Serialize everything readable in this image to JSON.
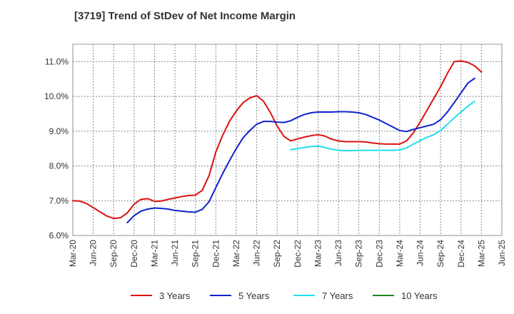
{
  "chart_data": {
    "type": "line",
    "title": "[3719]  Trend of StDev of Net Income Margin",
    "xlabel": "",
    "ylabel": "",
    "ylim": [
      6.0,
      11.5
    ],
    "y_ticks": [
      6.0,
      7.0,
      8.0,
      9.0,
      10.0,
      11.0
    ],
    "y_tick_labels": [
      "6.0%",
      "7.0%",
      "8.0%",
      "9.0%",
      "10.0%",
      "11.0%"
    ],
    "x_tick_labels": [
      "Mar-20",
      "Jun-20",
      "Sep-20",
      "Dec-20",
      "Mar-21",
      "Jun-21",
      "Sep-21",
      "Dec-21",
      "Mar-22",
      "Jun-22",
      "Sep-22",
      "Dec-22",
      "Mar-23",
      "Jun-23",
      "Sep-23",
      "Dec-23",
      "Mar-24",
      "Jun-24",
      "Sep-24",
      "Dec-24",
      "Mar-25",
      "Jun-25"
    ],
    "x_months": [
      "2020-03",
      "2020-04",
      "2020-05",
      "2020-06",
      "2020-07",
      "2020-08",
      "2020-09",
      "2020-10",
      "2020-11",
      "2020-12",
      "2021-01",
      "2021-02",
      "2021-03",
      "2021-04",
      "2021-05",
      "2021-06",
      "2021-07",
      "2021-08",
      "2021-09",
      "2021-10",
      "2021-11",
      "2021-12",
      "2022-01",
      "2022-02",
      "2022-03",
      "2022-04",
      "2022-05",
      "2022-06",
      "2022-07",
      "2022-08",
      "2022-09",
      "2022-10",
      "2022-11",
      "2022-12",
      "2023-01",
      "2023-02",
      "2023-03",
      "2023-04",
      "2023-05",
      "2023-06",
      "2023-07",
      "2023-08",
      "2023-09",
      "2023-10",
      "2023-11",
      "2023-12",
      "2024-01",
      "2024-02",
      "2024-03",
      "2024-04",
      "2024-05",
      "2024-06",
      "2024-07",
      "2024-08",
      "2024-09",
      "2024-10",
      "2024-11",
      "2024-12",
      "2025-01",
      "2025-02",
      "2025-03"
    ],
    "grid": true,
    "legend_position": "bottom",
    "series": [
      {
        "name": "3 Years",
        "color": "#dd1111",
        "values": [
          7.0,
          6.99,
          6.92,
          6.8,
          6.68,
          6.56,
          6.49,
          6.51,
          6.65,
          6.9,
          7.04,
          7.06,
          6.98,
          6.99,
          7.04,
          7.08,
          7.12,
          7.15,
          7.16,
          7.3,
          7.72,
          8.4,
          8.88,
          9.28,
          9.58,
          9.82,
          9.96,
          10.02,
          9.86,
          9.54,
          9.15,
          8.85,
          8.72,
          8.78,
          8.83,
          8.87,
          8.9,
          8.86,
          8.77,
          8.72,
          8.7,
          8.7,
          8.7,
          8.69,
          8.66,
          8.64,
          8.63,
          8.63,
          8.63,
          8.72,
          8.95,
          9.26,
          9.6,
          9.94,
          10.28,
          10.66,
          11.0,
          11.02,
          10.98,
          10.88,
          10.7
        ]
      },
      {
        "name": "5 Years",
        "color": "#1122cc",
        "values": [
          null,
          null,
          null,
          null,
          null,
          null,
          null,
          null,
          6.37,
          6.57,
          6.7,
          6.76,
          6.79,
          6.78,
          6.76,
          6.72,
          6.7,
          6.68,
          6.67,
          6.75,
          6.97,
          7.38,
          7.78,
          8.15,
          8.5,
          8.81,
          9.02,
          9.2,
          9.28,
          9.28,
          9.26,
          9.25,
          9.3,
          9.4,
          9.48,
          9.53,
          9.55,
          9.55,
          9.55,
          9.56,
          9.56,
          9.55,
          9.53,
          9.48,
          9.4,
          9.32,
          9.22,
          9.12,
          9.02,
          8.99,
          9.05,
          9.1,
          9.15,
          9.2,
          9.33,
          9.55,
          9.82,
          10.1,
          10.38,
          10.52,
          null
        ]
      },
      {
        "name": "7 Years",
        "color": "#22ddee",
        "values": [
          null,
          null,
          null,
          null,
          null,
          null,
          null,
          null,
          null,
          null,
          null,
          null,
          null,
          null,
          null,
          null,
          null,
          null,
          null,
          null,
          null,
          null,
          null,
          null,
          null,
          null,
          null,
          null,
          null,
          null,
          null,
          null,
          8.47,
          8.5,
          8.53,
          8.56,
          8.57,
          8.53,
          8.48,
          8.45,
          8.44,
          8.44,
          8.45,
          8.45,
          8.45,
          8.45,
          8.45,
          8.45,
          8.46,
          8.52,
          8.63,
          8.73,
          8.82,
          8.9,
          9.02,
          9.2,
          9.38,
          9.55,
          9.72,
          9.86,
          null
        ]
      },
      {
        "name": "10 Years",
        "color": "#228822",
        "values": []
      }
    ]
  }
}
